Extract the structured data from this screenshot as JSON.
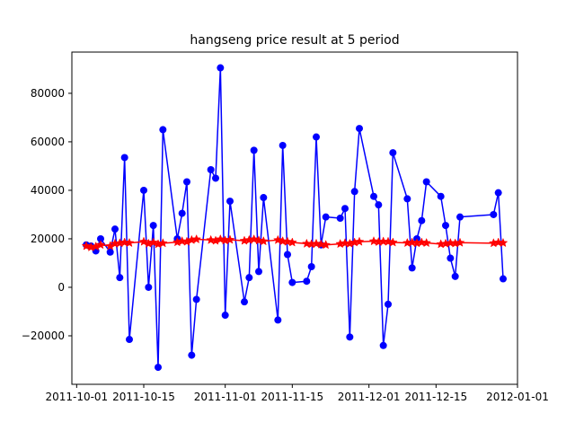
{
  "chart_data": {
    "type": "line",
    "title": "hangseng price result at 5 period",
    "xlabel": "",
    "ylabel": "",
    "xlim": [
      "2011-09-30",
      "2012-01-01"
    ],
    "ylim": [
      -40000,
      97000
    ],
    "x_ticks": [
      "2011-10-01",
      "2011-10-15",
      "2011-11-01",
      "2011-11-15",
      "2011-12-01",
      "2011-12-15",
      "2012-01-01"
    ],
    "y_ticks": [
      -20000,
      0,
      20000,
      40000,
      60000,
      80000
    ],
    "grid": false,
    "legend": "none",
    "series": [
      {
        "color": "#0000ff",
        "marker": "circle",
        "points": [
          [
            "2011-10-03",
            17500
          ],
          [
            "2011-10-04",
            17000
          ],
          [
            "2011-10-05",
            15000
          ],
          [
            "2011-10-06",
            20000
          ],
          [
            "2011-10-08",
            14500
          ],
          [
            "2011-10-09",
            24000
          ],
          [
            "2011-10-10",
            4000
          ],
          [
            "2011-10-11",
            53500
          ],
          [
            "2011-10-12",
            -21500
          ],
          [
            "2011-10-15",
            40000
          ],
          [
            "2011-10-16",
            0
          ],
          [
            "2011-10-17",
            25500
          ],
          [
            "2011-10-18",
            -33000
          ],
          [
            "2011-10-19",
            65000
          ],
          [
            "2011-10-22",
            20000
          ],
          [
            "2011-10-23",
            30500
          ],
          [
            "2011-10-24",
            43500
          ],
          [
            "2011-10-25",
            -28000
          ],
          [
            "2011-10-26",
            -5000
          ],
          [
            "2011-10-29",
            48500
          ],
          [
            "2011-10-30",
            45000
          ],
          [
            "2011-10-31",
            90500
          ],
          [
            "2011-11-01",
            -11500
          ],
          [
            "2011-11-02",
            35500
          ],
          [
            "2011-11-05",
            -6000
          ],
          [
            "2011-11-06",
            4000
          ],
          [
            "2011-11-07",
            56500
          ],
          [
            "2011-11-08",
            6500
          ],
          [
            "2011-11-09",
            37000
          ],
          [
            "2011-11-12",
            -13500
          ],
          [
            "2011-11-13",
            58500
          ],
          [
            "2011-11-14",
            13500
          ],
          [
            "2011-11-15",
            2000
          ],
          [
            "2011-11-18",
            2500
          ],
          [
            "2011-11-19",
            8500
          ],
          [
            "2011-11-20",
            62000
          ],
          [
            "2011-11-21",
            17500
          ],
          [
            "2011-11-22",
            29000
          ],
          [
            "2011-11-25",
            28500
          ],
          [
            "2011-11-26",
            32500
          ],
          [
            "2011-11-27",
            -20500
          ],
          [
            "2011-11-28",
            39500
          ],
          [
            "2011-11-29",
            65500
          ],
          [
            "2011-12-02",
            37500
          ],
          [
            "2011-12-03",
            34000
          ],
          [
            "2011-12-04",
            -24000
          ],
          [
            "2011-12-05",
            -7000
          ],
          [
            "2011-12-06",
            55500
          ],
          [
            "2011-12-09",
            36500
          ],
          [
            "2011-12-10",
            8000
          ],
          [
            "2011-12-11",
            20000
          ],
          [
            "2011-12-12",
            27500
          ],
          [
            "2011-12-13",
            43500
          ],
          [
            "2011-12-16",
            37500
          ],
          [
            "2011-12-17",
            25500
          ],
          [
            "2011-12-18",
            12000
          ],
          [
            "2011-12-19",
            4500
          ],
          [
            "2011-12-20",
            29000
          ],
          [
            "2011-12-27",
            30000
          ],
          [
            "2011-12-28",
            39000
          ],
          [
            "2011-12-29",
            3500
          ]
        ]
      },
      {
        "color": "#ff0000",
        "marker": "star",
        "points": [
          [
            "2011-10-03",
            17000
          ],
          [
            "2011-10-04",
            16500
          ],
          [
            "2011-10-05",
            16800
          ],
          [
            "2011-10-06",
            17500
          ],
          [
            "2011-10-08",
            17000
          ],
          [
            "2011-10-09",
            18000
          ],
          [
            "2011-10-10",
            18200
          ],
          [
            "2011-10-11",
            18500
          ],
          [
            "2011-10-12",
            18300
          ],
          [
            "2011-10-15",
            18800
          ],
          [
            "2011-10-16",
            18000
          ],
          [
            "2011-10-17",
            18500
          ],
          [
            "2011-10-18",
            17800
          ],
          [
            "2011-10-19",
            18200
          ],
          [
            "2011-10-22",
            18600
          ],
          [
            "2011-10-23",
            19000
          ],
          [
            "2011-10-24",
            18800
          ],
          [
            "2011-10-25",
            19500
          ],
          [
            "2011-10-26",
            19800
          ],
          [
            "2011-10-29",
            19500
          ],
          [
            "2011-10-30",
            19200
          ],
          [
            "2011-10-31",
            19800
          ],
          [
            "2011-11-01",
            19300
          ],
          [
            "2011-11-02",
            19600
          ],
          [
            "2011-11-05",
            19200
          ],
          [
            "2011-11-06",
            19500
          ],
          [
            "2011-11-07",
            19800
          ],
          [
            "2011-11-08",
            19300
          ],
          [
            "2011-11-09",
            19000
          ],
          [
            "2011-11-12",
            19500
          ],
          [
            "2011-11-13",
            19000
          ],
          [
            "2011-11-14",
            18800
          ],
          [
            "2011-11-15",
            18500
          ],
          [
            "2011-11-18",
            18000
          ],
          [
            "2011-11-19",
            17800
          ],
          [
            "2011-11-20",
            18000
          ],
          [
            "2011-11-21",
            17700
          ],
          [
            "2011-11-22",
            17500
          ],
          [
            "2011-11-25",
            17900
          ],
          [
            "2011-11-26",
            18200
          ],
          [
            "2011-11-27",
            18000
          ],
          [
            "2011-11-28",
            18500
          ],
          [
            "2011-11-29",
            18800
          ],
          [
            "2011-12-02",
            19000
          ],
          [
            "2011-12-03",
            18700
          ],
          [
            "2011-12-04",
            18900
          ],
          [
            "2011-12-05",
            18800
          ],
          [
            "2011-12-06",
            18500
          ],
          [
            "2011-12-09",
            18300
          ],
          [
            "2011-12-10",
            18500
          ],
          [
            "2011-12-11",
            18200
          ],
          [
            "2011-12-12",
            18500
          ],
          [
            "2011-12-13",
            18300
          ],
          [
            "2011-12-16",
            17800
          ],
          [
            "2011-12-17",
            18000
          ],
          [
            "2011-12-18",
            18300
          ],
          [
            "2011-12-19",
            18100
          ],
          [
            "2011-12-20",
            18400
          ],
          [
            "2011-12-27",
            18200
          ],
          [
            "2011-12-28",
            18500
          ],
          [
            "2011-12-29",
            18300
          ]
        ]
      }
    ]
  }
}
